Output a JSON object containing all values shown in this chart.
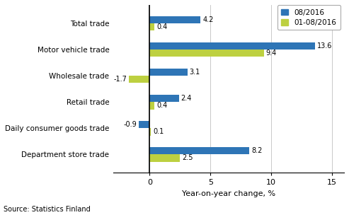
{
  "categories": [
    "Total trade",
    "Motor vehicle trade",
    "Wholesale trade",
    "Retail trade",
    "Daily consumer goods trade",
    "Department store trade"
  ],
  "series": {
    "08/2016": [
      4.2,
      13.6,
      3.1,
      2.4,
      -0.9,
      8.2
    ],
    "01-08/2016": [
      0.4,
      9.4,
      -1.7,
      0.4,
      0.1,
      2.5
    ]
  },
  "colors": {
    "08/2016": "#2E75B6",
    "01-08/2016": "#BDD040"
  },
  "xlabel": "Year-on-year change, %",
  "xlim": [
    -3,
    16
  ],
  "xticks": [
    0,
    5,
    10,
    15
  ],
  "source": "Source: Statistics Finland",
  "bar_height": 0.28,
  "legend_labels": [
    "08/2016",
    "01-08/2016"
  ]
}
